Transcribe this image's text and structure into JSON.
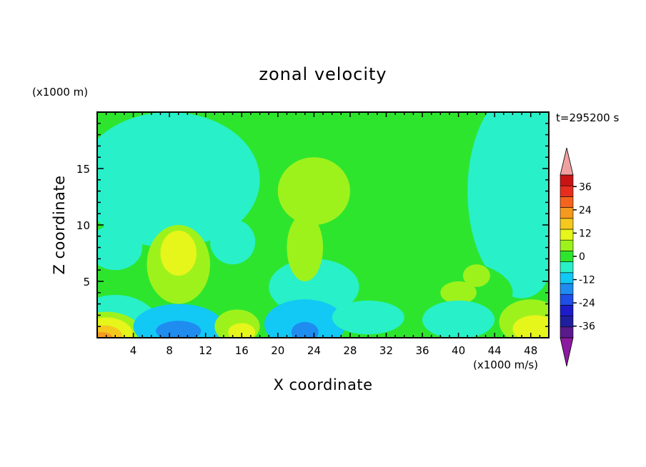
{
  "chart_data": {
    "type": "heatmap",
    "title": "zonal velocity",
    "xlabel": "X coordinate",
    "ylabel": "Z coordinate",
    "x_unit": "(x1000 m/s)",
    "y_unit": "(x1000 m)",
    "time_label": "t=295200 s",
    "xlim": [
      0,
      50
    ],
    "ylim": [
      0,
      20
    ],
    "x_ticks": [
      4,
      8,
      12,
      16,
      20,
      24,
      28,
      32,
      36,
      40,
      44,
      48
    ],
    "x_tick_labels": [
      "4",
      "8",
      "12",
      "16",
      "20",
      "24",
      "28",
      "32",
      "36",
      "40",
      "44",
      "48"
    ],
    "y_ticks": [
      5,
      10,
      15
    ],
    "y_tick_labels": [
      "5",
      "10",
      "15"
    ],
    "colorbar": {
      "levels": [
        -42,
        -36,
        -30,
        -24,
        -18,
        -12,
        -6,
        0,
        6,
        12,
        18,
        24,
        30,
        36,
        42
      ],
      "colors": [
        "#5a1a8c",
        "#1f1f9e",
        "#1c1cc8",
        "#1f4fe6",
        "#1f8cf0",
        "#12c8f5",
        "#28f0c8",
        "#2ee52e",
        "#9ef21c",
        "#e6f51a",
        "#f5c81e",
        "#f59a1e",
        "#f5641e",
        "#e62d1e",
        "#c81414"
      ],
      "under_color": "#8c1aa0",
      "over_color": "#f0a0a0",
      "tick_labels": [
        "36",
        "24",
        "12",
        "0",
        "-12",
        "-24",
        "-36"
      ],
      "tick_values": [
        36,
        24,
        12,
        0,
        -12,
        -24,
        -36
      ]
    },
    "regions": [
      {
        "value": -6,
        "shape": "ellipse",
        "cx": 8,
        "cy": 14,
        "rx": 10,
        "ry": 6
      },
      {
        "value": -6,
        "shape": "ellipse",
        "cx": 47,
        "cy": 13,
        "rx": 6,
        "ry": 9
      },
      {
        "value": -6,
        "shape": "ellipse",
        "cx": 2,
        "cy": 8,
        "rx": 3,
        "ry": 2
      },
      {
        "value": -6,
        "shape": "ellipse",
        "cx": 15,
        "cy": 8.5,
        "rx": 2.5,
        "ry": 2
      },
      {
        "value": -6,
        "shape": "ellipse",
        "cx": 24,
        "cy": 4.5,
        "rx": 5,
        "ry": 2.5
      },
      {
        "value": -6,
        "shape": "ellipse",
        "cx": 47,
        "cy": 6,
        "rx": 3,
        "ry": 2.5
      },
      {
        "value": 0,
        "shape": "ellipse",
        "cx": 31,
        "cy": 14,
        "rx": 9,
        "ry": 7
      },
      {
        "value": 0,
        "shape": "ellipse",
        "cx": 38,
        "cy": 4,
        "rx": 8,
        "ry": 3
      },
      {
        "value": 6,
        "shape": "ellipse",
        "cx": 24,
        "cy": 13,
        "rx": 4,
        "ry": 3
      },
      {
        "value": 6,
        "shape": "ellipse",
        "cx": 23,
        "cy": 8,
        "rx": 2,
        "ry": 3
      },
      {
        "value": 6,
        "shape": "ellipse",
        "cx": 9,
        "cy": 6.5,
        "rx": 3.5,
        "ry": 3.5
      },
      {
        "value": 6,
        "shape": "ellipse",
        "cx": 40,
        "cy": 4,
        "rx": 2,
        "ry": 1
      },
      {
        "value": 6,
        "shape": "ellipse",
        "cx": 42,
        "cy": 5.5,
        "rx": 1.5,
        "ry": 1
      },
      {
        "value": 12,
        "shape": "ellipse",
        "cx": 9,
        "cy": 7.5,
        "rx": 2,
        "ry": 2
      },
      {
        "value": -6,
        "shape": "ellipse",
        "cx": 2,
        "cy": 0.8,
        "rx": 5,
        "ry": 3
      },
      {
        "value": 6,
        "shape": "ellipse",
        "cx": 1,
        "cy": 0.3,
        "rx": 4,
        "ry": 2
      },
      {
        "value": 12,
        "shape": "ellipse",
        "cx": 1,
        "cy": 0.2,
        "rx": 3,
        "ry": 1.6
      },
      {
        "value": 18,
        "shape": "ellipse",
        "cx": 0.8,
        "cy": 0.1,
        "rx": 2,
        "ry": 1
      },
      {
        "value": 24,
        "shape": "ellipse",
        "cx": 0.5,
        "cy": 0,
        "rx": 1.2,
        "ry": 0.5
      },
      {
        "value": -12,
        "shape": "ellipse",
        "cx": 9,
        "cy": 1,
        "rx": 5,
        "ry": 2
      },
      {
        "value": -18,
        "shape": "ellipse",
        "cx": 9,
        "cy": 0.6,
        "rx": 2.5,
        "ry": 0.9
      },
      {
        "value": 6,
        "shape": "ellipse",
        "cx": 15.5,
        "cy": 1,
        "rx": 2.5,
        "ry": 1.5
      },
      {
        "value": 12,
        "shape": "ellipse",
        "cx": 16,
        "cy": 0.5,
        "rx": 1.5,
        "ry": 0.8
      },
      {
        "value": -12,
        "shape": "ellipse",
        "cx": 23,
        "cy": 1.2,
        "rx": 4.5,
        "ry": 2.2
      },
      {
        "value": -18,
        "shape": "ellipse",
        "cx": 23,
        "cy": 0.5,
        "rx": 1.5,
        "ry": 0.9
      },
      {
        "value": -6,
        "shape": "ellipse",
        "cx": 30,
        "cy": 1.8,
        "rx": 4,
        "ry": 1.5
      },
      {
        "value": -6,
        "shape": "ellipse",
        "cx": 40,
        "cy": 1.6,
        "rx": 4,
        "ry": 1.7
      },
      {
        "value": 6,
        "shape": "ellipse",
        "cx": 48,
        "cy": 1.4,
        "rx": 3.5,
        "ry": 2
      },
      {
        "value": 12,
        "shape": "ellipse",
        "cx": 48.5,
        "cy": 0.8,
        "rx": 2.5,
        "ry": 1.2
      }
    ]
  }
}
